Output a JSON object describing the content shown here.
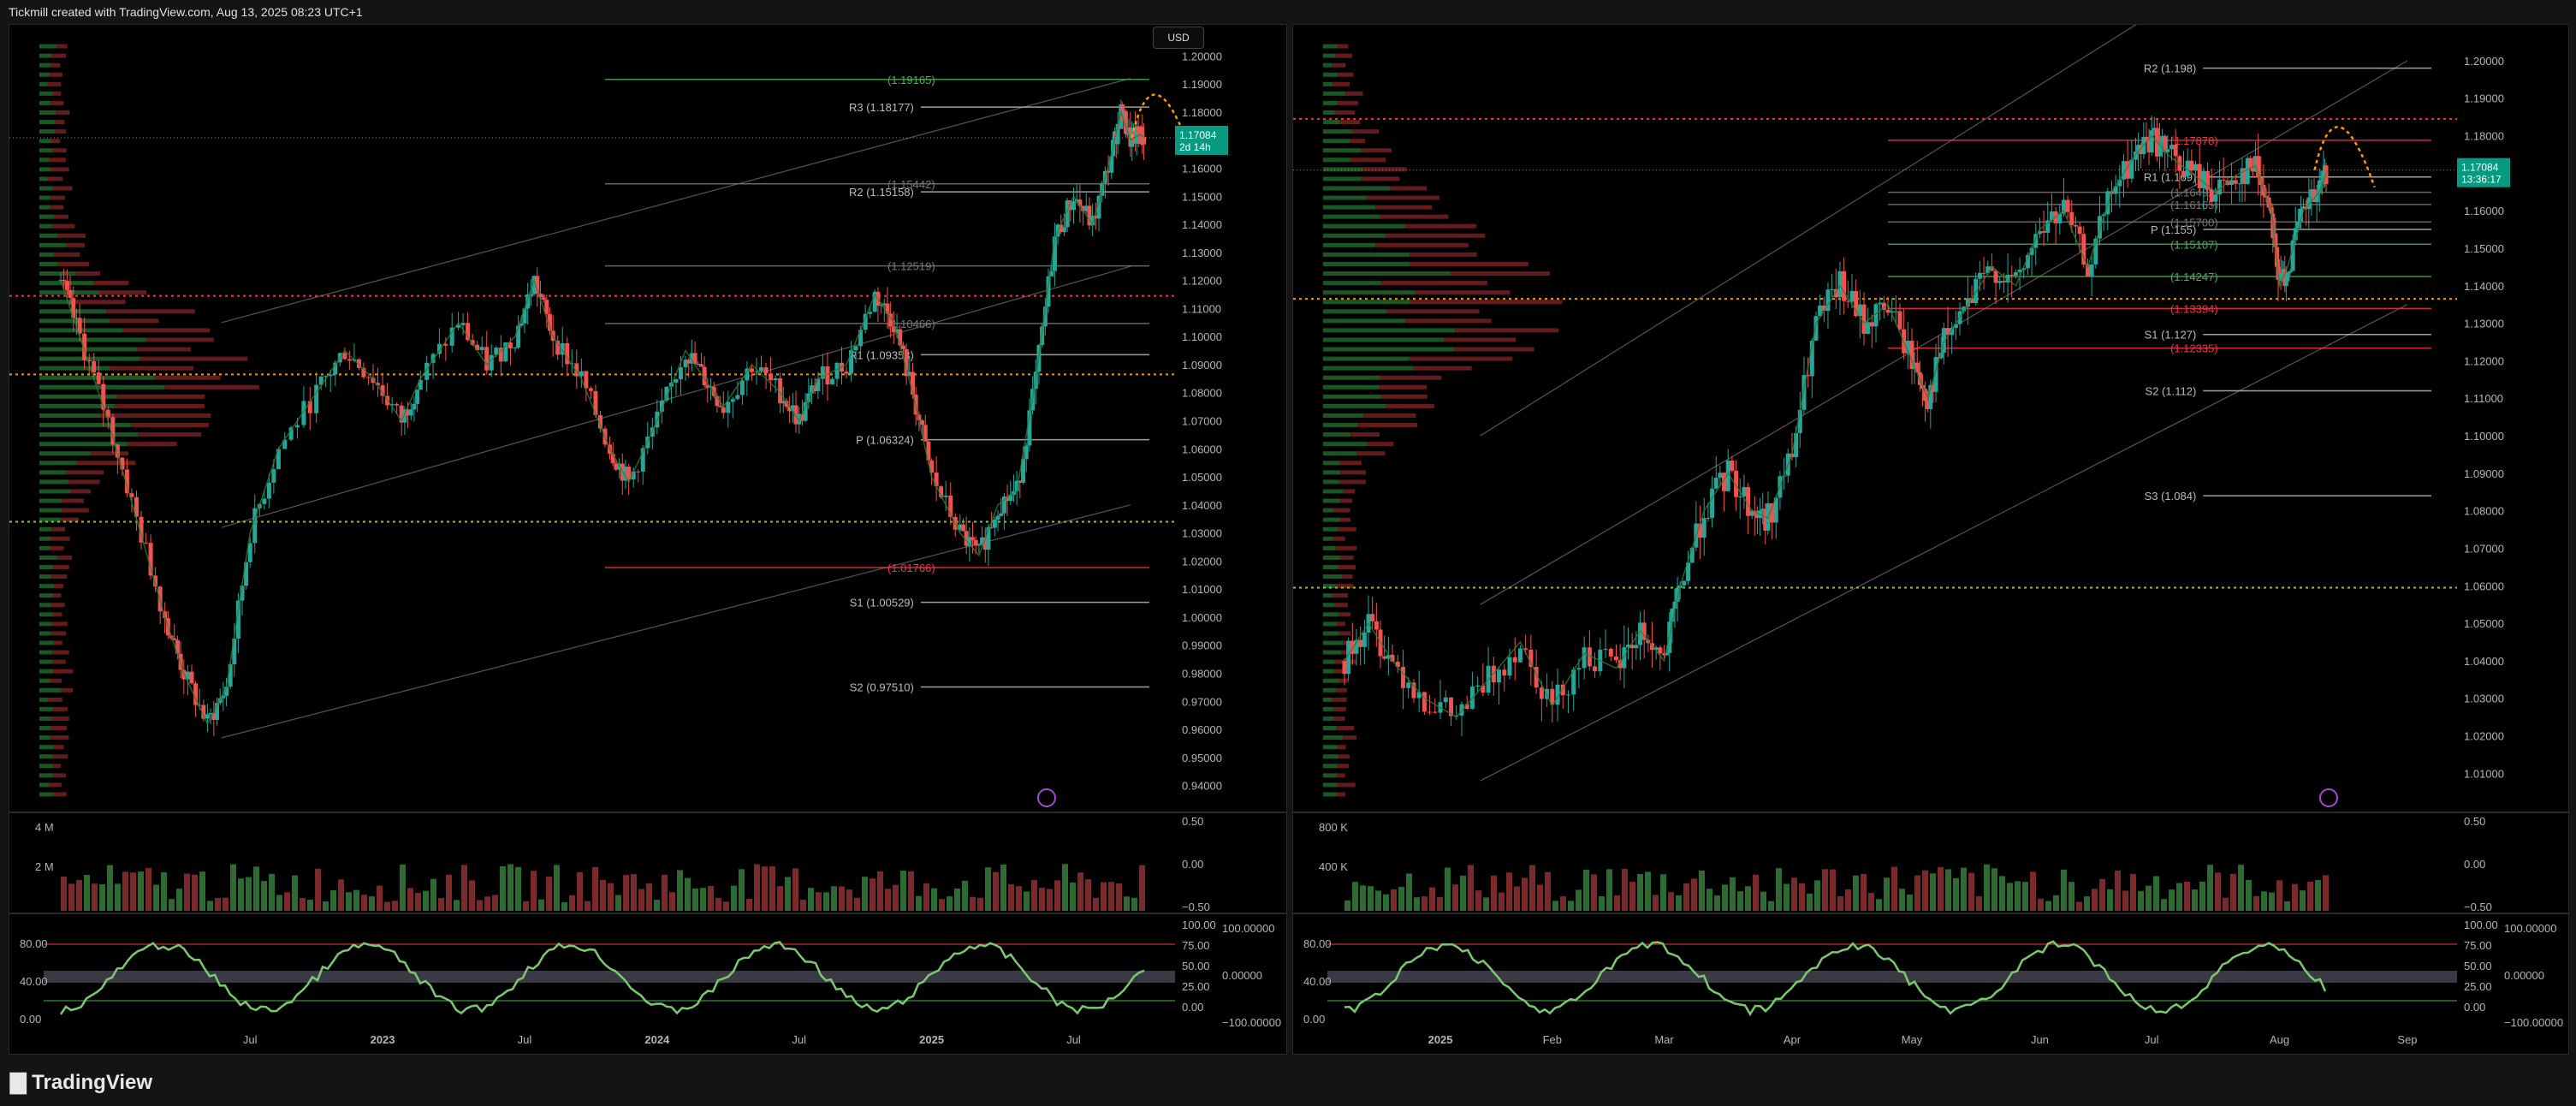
{
  "header": {
    "title": "Tickmill created with TradingView.com, Aug 13, 2025 08:23 UTC+1"
  },
  "footer": {
    "logo": "TradingView"
  },
  "currency_button": "USD",
  "colors": {
    "up": "#26a69a",
    "down": "#ef5350",
    "pivot_level": "#cccccc",
    "high_level": "#4caf50",
    "low_level": "#f23645",
    "current_price_bg": "#089981",
    "forecast": "#ff9800",
    "vp_up": "#1e5f2a",
    "vp_down": "#6e1e1e"
  },
  "chart_data": [
    {
      "type": "line",
      "name": "left-weekly",
      "y_ticks": [
        "1.20000",
        "1.19000",
        "1.18000",
        "1.17000",
        "1.16000",
        "1.15000",
        "1.14000",
        "1.13000",
        "1.12000",
        "1.11000",
        "1.10000",
        "1.09000",
        "1.08000",
        "1.07000",
        "1.06000",
        "1.05000",
        "1.04000",
        "1.03000",
        "1.02000",
        "1.01000",
        "1.00000",
        "0.99000",
        "0.98000",
        "0.97000",
        "0.96000",
        "0.95000",
        "0.94000"
      ],
      "ylim": [
        0.935,
        1.205
      ],
      "x_ticks": [
        {
          "label": "Jul",
          "x": 0.2
        },
        {
          "label": "2023",
          "x": 0.34
        },
        {
          "label": "Jul",
          "x": 0.49
        },
        {
          "label": "2024",
          "x": 0.63
        },
        {
          "label": "Jul",
          "x": 0.78
        },
        {
          "label": "2025",
          "x": 0.92
        },
        {
          "label": "Jul",
          "x": 1.07
        }
      ],
      "xlim": [
        0,
        1.15
      ],
      "price_path": [
        [
          0,
          1.12
        ],
        [
          0.02,
          1.1
        ],
        [
          0.05,
          1.07
        ],
        [
          0.08,
          1.035
        ],
        [
          0.11,
          1.0
        ],
        [
          0.13,
          0.98
        ],
        [
          0.155,
          0.962
        ],
        [
          0.175,
          0.975
        ],
        [
          0.2,
          1.03
        ],
        [
          0.23,
          1.06
        ],
        [
          0.27,
          1.08
        ],
        [
          0.3,
          1.095
        ],
        [
          0.33,
          1.085
        ],
        [
          0.36,
          1.07
        ],
        [
          0.38,
          1.085
        ],
        [
          0.42,
          1.105
        ],
        [
          0.45,
          1.09
        ],
        [
          0.48,
          1.1
        ],
        [
          0.5,
          1.12
        ],
        [
          0.52,
          1.1
        ],
        [
          0.55,
          1.085
        ],
        [
          0.58,
          1.06
        ],
        [
          0.6,
          1.048
        ],
        [
          0.63,
          1.07
        ],
        [
          0.66,
          1.095
        ],
        [
          0.68,
          1.085
        ],
        [
          0.7,
          1.075
        ],
        [
          0.73,
          1.09
        ],
        [
          0.76,
          1.08
        ],
        [
          0.78,
          1.07
        ],
        [
          0.8,
          1.085
        ],
        [
          0.83,
          1.09
        ],
        [
          0.86,
          1.115
        ],
        [
          0.88,
          1.105
        ],
        [
          0.9,
          1.08
        ],
        [
          0.92,
          1.05
        ],
        [
          0.95,
          1.03
        ],
        [
          0.97,
          1.022
        ],
        [
          0.99,
          1.04
        ],
        [
          1.01,
          1.045
        ],
        [
          1.03,
          1.085
        ],
        [
          1.05,
          1.135
        ],
        [
          1.07,
          1.15
        ],
        [
          1.09,
          1.14
        ],
        [
          1.11,
          1.165
        ],
        [
          1.12,
          1.18
        ],
        [
          1.13,
          1.17
        ],
        [
          1.14,
          1.172
        ],
        [
          1.145,
          1.17084
        ]
      ],
      "channel": [
        [
          [
            0.17,
            0.957
          ],
          [
            1.13,
            1.04
          ]
        ],
        [
          [
            0.17,
            1.032
          ],
          [
            1.13,
            1.125
          ]
        ],
        [
          [
            0.17,
            1.105
          ],
          [
            1.13,
            1.192
          ]
        ]
      ],
      "levels": [
        {
          "label": "R3 (1.18177)",
          "price": 1.18177,
          "kind": "pivot"
        },
        {
          "label": "R2 (1.15158)",
          "price": 1.15158,
          "kind": "pivot"
        },
        {
          "label": "R1 (1.09353)",
          "price": 1.09353,
          "kind": "pivot"
        },
        {
          "label": "P (1.06324)",
          "price": 1.06324,
          "kind": "pivot"
        },
        {
          "label": "S1 (1.00529)",
          "price": 1.00529,
          "kind": "pivot"
        },
        {
          "label": "S2 (0.97510)",
          "price": 0.9751,
          "kind": "pivot"
        },
        {
          "label": "(1.19165)",
          "price": 1.19165,
          "kind": "high"
        },
        {
          "label": "(1.15442)",
          "price": 1.15442,
          "kind": "faint"
        },
        {
          "label": "(1.12519)",
          "price": 1.12519,
          "kind": "faint"
        },
        {
          "label": "(1.10466)",
          "price": 1.10466,
          "kind": "faint"
        },
        {
          "label": "(1.01766)",
          "price": 1.01766,
          "kind": "low"
        }
      ],
      "dotted_levels": [
        {
          "price": 1.1145,
          "color": "#f23645"
        },
        {
          "price": 1.0865,
          "color": "#ff9800"
        },
        {
          "price": 1.034,
          "color": "#8bc34a"
        }
      ],
      "current_price": {
        "value": "1.17084",
        "countdown": "2d 14h"
      },
      "volume": {
        "ticks": [
          "4 M",
          "2 M"
        ],
        "right_ticks": [
          "0.50",
          "0.00",
          "−0.50"
        ]
      },
      "oscillator": {
        "left_ticks": [
          "80.00",
          "40.00",
          "0.00"
        ],
        "right_ticks": [
          "100.00",
          "75.00",
          "50.00",
          "25.00",
          "0.00"
        ],
        "far_ticks": [
          "100.00000",
          "0.00000",
          "−100.00000"
        ]
      }
    },
    {
      "type": "line",
      "name": "right-daily",
      "y_ticks": [
        "1.20000",
        "1.19000",
        "1.18000",
        "1.17000",
        "1.16000",
        "1.15000",
        "1.14000",
        "1.13000",
        "1.12000",
        "1.11000",
        "1.10000",
        "1.09000",
        "1.08000",
        "1.07000",
        "1.06000",
        "1.05000",
        "1.04000",
        "1.03000",
        "1.02000",
        "1.01000"
      ],
      "ylim": [
        1.003,
        1.205
      ],
      "x_ticks": [
        {
          "label": "2025",
          "x": 0.12
        },
        {
          "label": "Feb",
          "x": 0.26
        },
        {
          "label": "Mar",
          "x": 0.4
        },
        {
          "label": "Apr",
          "x": 0.56
        },
        {
          "label": "May",
          "x": 0.71
        },
        {
          "label": "Jun",
          "x": 0.87
        },
        {
          "label": "Jul",
          "x": 1.01
        },
        {
          "label": "Aug",
          "x": 1.17
        },
        {
          "label": "Sep",
          "x": 1.33
        }
      ],
      "xlim": [
        0,
        1.36
      ],
      "price_path": [
        [
          0,
          1.04
        ],
        [
          0.03,
          1.05
        ],
        [
          0.06,
          1.04
        ],
        [
          0.1,
          1.03
        ],
        [
          0.14,
          1.025
        ],
        [
          0.18,
          1.035
        ],
        [
          0.22,
          1.045
        ],
        [
          0.26,
          1.028
        ],
        [
          0.3,
          1.042
        ],
        [
          0.34,
          1.038
        ],
        [
          0.37,
          1.048
        ],
        [
          0.4,
          1.04
        ],
        [
          0.42,
          1.06
        ],
        [
          0.45,
          1.08
        ],
        [
          0.48,
          1.09
        ],
        [
          0.51,
          1.08
        ],
        [
          0.53,
          1.078
        ],
        [
          0.56,
          1.095
        ],
        [
          0.59,
          1.13
        ],
        [
          0.62,
          1.14
        ],
        [
          0.65,
          1.13
        ],
        [
          0.68,
          1.135
        ],
        [
          0.71,
          1.12
        ],
        [
          0.73,
          1.11
        ],
        [
          0.75,
          1.125
        ],
        [
          0.78,
          1.135
        ],
        [
          0.81,
          1.145
        ],
        [
          0.84,
          1.14
        ],
        [
          0.87,
          1.155
        ],
        [
          0.9,
          1.16
        ],
        [
          0.93,
          1.145
        ],
        [
          0.96,
          1.165
        ],
        [
          0.99,
          1.175
        ],
        [
          1.01,
          1.18
        ],
        [
          1.03,
          1.175
        ],
        [
          1.06,
          1.17
        ],
        [
          1.09,
          1.165
        ],
        [
          1.12,
          1.17
        ],
        [
          1.14,
          1.172
        ],
        [
          1.16,
          1.16
        ],
        [
          1.17,
          1.14
        ],
        [
          1.18,
          1.145
        ],
        [
          1.2,
          1.16
        ],
        [
          1.22,
          1.165
        ],
        [
          1.23,
          1.17084
        ]
      ],
      "channel": [
        [
          [
            0.17,
            1.008
          ],
          [
            1.33,
            1.135
          ]
        ],
        [
          [
            0.17,
            1.055
          ],
          [
            1.33,
            1.2
          ]
        ],
        [
          [
            0.17,
            1.1
          ],
          [
            1.33,
            1.255
          ]
        ]
      ],
      "levels": [
        {
          "label": "R2 (1.198)",
          "price": 1.198,
          "kind": "pivot"
        },
        {
          "label": "R1 (1.169)",
          "price": 1.169,
          "kind": "pivot"
        },
        {
          "label": "P (1.155)",
          "price": 1.155,
          "kind": "pivot"
        },
        {
          "label": "S1 (1.127)",
          "price": 1.127,
          "kind": "pivot"
        },
        {
          "label": "S2 (1.112)",
          "price": 1.112,
          "kind": "pivot"
        },
        {
          "label": "S3 (1.084)",
          "price": 1.084,
          "kind": "pivot"
        },
        {
          "label": "(1.17878)",
          "price": 1.17878,
          "kind": "low"
        },
        {
          "label": "(1.16492)",
          "price": 1.16492,
          "kind": "faint"
        },
        {
          "label": "(1.16165)",
          "price": 1.16165,
          "kind": "faint"
        },
        {
          "label": "(1.15700)",
          "price": 1.157,
          "kind": "faint"
        },
        {
          "label": "(1.15107)",
          "price": 1.15107,
          "kind": "high"
        },
        {
          "label": "(1.14247)",
          "price": 1.14247,
          "kind": "high"
        },
        {
          "label": "(1.13394)",
          "price": 1.13394,
          "kind": "low"
        },
        {
          "label": "(1.12335)",
          "price": 1.12335,
          "kind": "low"
        }
      ],
      "dotted_levels": [
        {
          "price": 1.1845,
          "color": "#f23645"
        },
        {
          "price": 1.1365,
          "color": "#ff9800"
        },
        {
          "price": 1.0595,
          "color": "#8bc34a"
        }
      ],
      "current_price": {
        "value": "1.17084",
        "countdown": "13:36:17"
      },
      "volume": {
        "ticks": [
          "800 K",
          "400 K"
        ],
        "right_ticks": [
          "0.50",
          "0.00",
          "−0.50"
        ]
      },
      "oscillator": {
        "left_ticks": [
          "80.00",
          "40.00",
          "0.00"
        ],
        "right_ticks": [
          "100.00",
          "75.00",
          "50.00",
          "25.00",
          "0.00"
        ],
        "far_ticks": [
          "100.00000",
          "0.00000",
          "−100.00000"
        ]
      }
    }
  ]
}
